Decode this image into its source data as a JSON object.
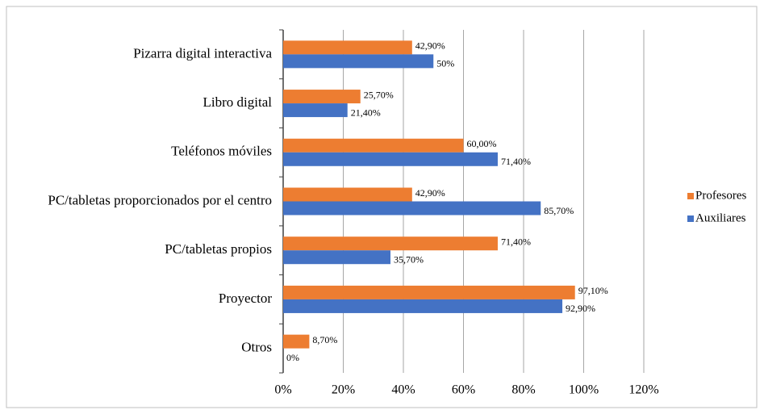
{
  "chart_data": {
    "type": "hbar",
    "categories": [
      "Pizarra digital interactiva",
      "Libro digital",
      "Teléfonos móviles",
      "PC/tabletas proporcionados por el centro",
      "PC/tabletas propios",
      "Proyector",
      "Otros"
    ],
    "series": [
      {
        "name": "Profesores",
        "color": "#ed7d31",
        "values": [
          42.9,
          25.7,
          60,
          42.9,
          71.4,
          97.1,
          8.7
        ],
        "value_labels": [
          "42,90%",
          "25,70%",
          "60,00%",
          "42,90%",
          "71,40%",
          "97,10%",
          "8,70%"
        ]
      },
      {
        "name": "Auxiliares",
        "color": "#4472c4",
        "values": [
          50,
          21.4,
          71.4,
          85.7,
          35.7,
          92.9,
          0
        ],
        "value_labels": [
          "50%",
          "21,40%",
          "71,40%",
          "85,70%",
          "35,70%",
          "92,90%",
          "0%"
        ]
      }
    ],
    "xlim": [
      0,
      120
    ],
    "xticks": [
      {
        "value": 0,
        "label": "0%"
      },
      {
        "value": 20,
        "label": "20%"
      },
      {
        "value": 40,
        "label": "40%"
      },
      {
        "value": 60,
        "label": "60%"
      },
      {
        "value": 80,
        "label": "80%"
      },
      {
        "value": 100,
        "label": "100%"
      },
      {
        "value": 120,
        "label": "120%"
      }
    ],
    "grid": true,
    "legend": "right"
  }
}
